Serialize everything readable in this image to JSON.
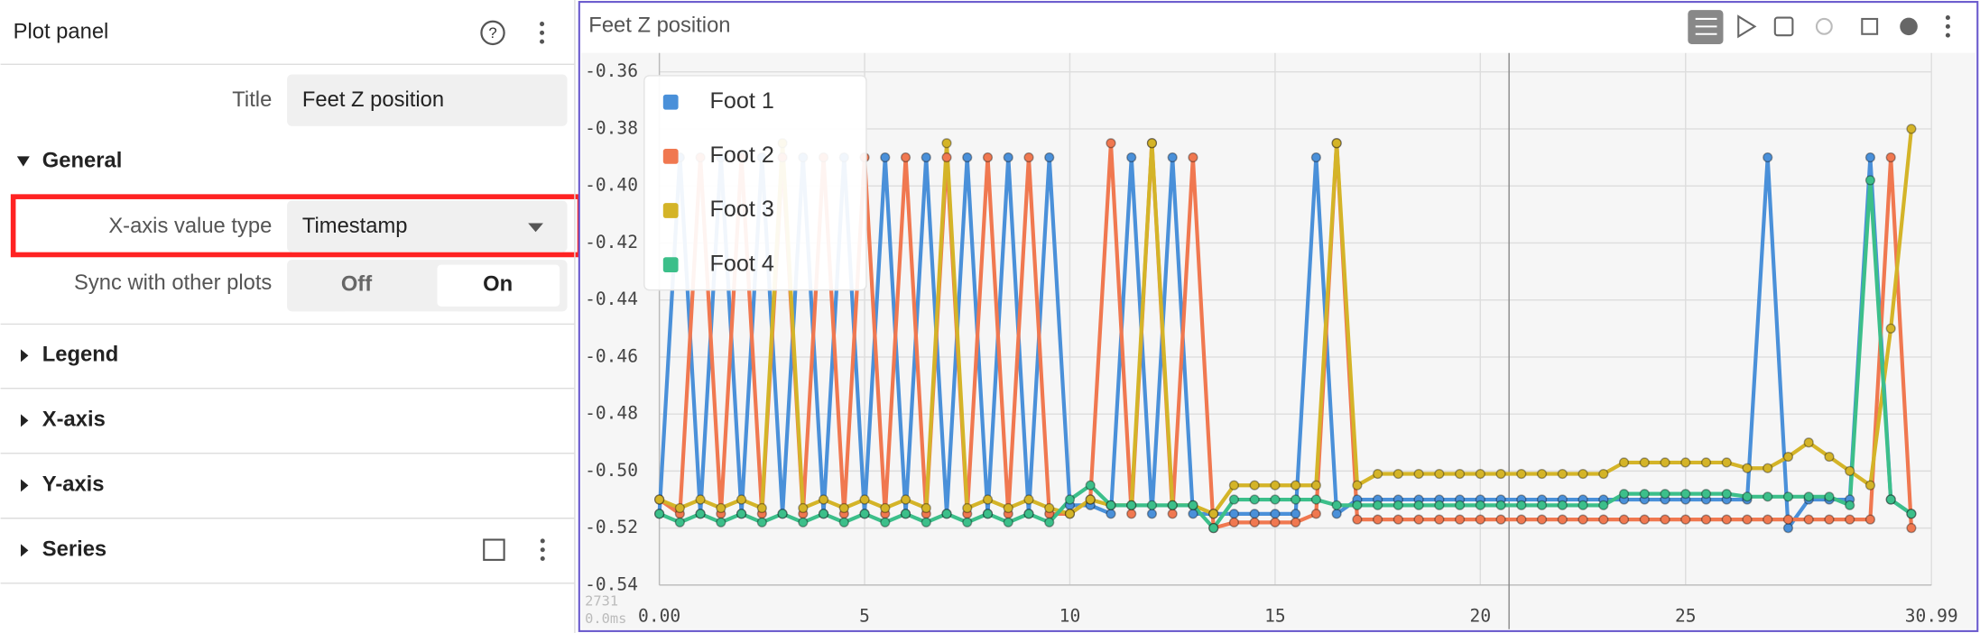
{
  "panel": {
    "header": "Plot panel",
    "title_label": "Title",
    "title_value": "Feet Z position",
    "general": "General",
    "x_axis_type_label": "X-axis value type",
    "x_axis_type_value": "Timestamp",
    "sync_label": "Sync with other plots",
    "sync_off": "Off",
    "sync_on": "On",
    "sections": [
      "Legend",
      "X-axis",
      "Y-axis",
      "Series"
    ]
  },
  "chart_data": {
    "type": "line",
    "title": "Feet Z position",
    "xlim": [
      0,
      30.99
    ],
    "xticks": [
      {
        "value": 0,
        "label": "0.00"
      },
      5,
      10,
      15,
      20,
      25,
      {
        "value": 30.99,
        "label": "30.99"
      }
    ],
    "ylim": [
      -0.54,
      -0.36
    ],
    "yticks": [
      -0.36,
      -0.38,
      {
        "value": -0.4,
        "label": "-0.40"
      },
      -0.42,
      -0.44,
      -0.46,
      -0.48,
      {
        "value": -0.5,
        "label": "-0.50"
      },
      -0.52,
      -0.54
    ],
    "grid": true,
    "legend": "top-left",
    "cursor_x": 20.7,
    "corner_text": [
      "2731",
      "0.0ms"
    ],
    "x": [
      0,
      0.5,
      1,
      1.5,
      2,
      2.5,
      3,
      3.5,
      4,
      4.5,
      5,
      5.5,
      6,
      6.5,
      7,
      7.5,
      8,
      8.5,
      9,
      9.5,
      10,
      10.5,
      11,
      11.5,
      12,
      12.5,
      13,
      13.5,
      14,
      14.5,
      15,
      15.5,
      16,
      16.5,
      17,
      17.5,
      18,
      18.5,
      19,
      19.5,
      20,
      20.5,
      21,
      21.5,
      22,
      22.5,
      23,
      23.5,
      24,
      24.5,
      25,
      25.5,
      26,
      26.5,
      27,
      27.5,
      28,
      28.5,
      29,
      29.5,
      30,
      30.5
    ],
    "series": [
      {
        "name": "Foot 1",
        "color": "#4a90d9",
        "values": [
          -0.515,
          -0.39,
          -0.515,
          -0.39,
          -0.515,
          -0.39,
          -0.515,
          -0.39,
          -0.515,
          -0.39,
          -0.515,
          -0.39,
          -0.515,
          -0.39,
          -0.515,
          -0.39,
          -0.515,
          -0.39,
          -0.515,
          -0.39,
          -0.512,
          -0.512,
          -0.515,
          -0.39,
          -0.515,
          -0.39,
          -0.515,
          -0.515,
          -0.515,
          -0.515,
          -0.515,
          -0.515,
          -0.39,
          -0.515,
          -0.51,
          -0.51,
          -0.51,
          -0.51,
          -0.51,
          -0.51,
          -0.51,
          -0.51,
          -0.51,
          -0.51,
          -0.51,
          -0.51,
          -0.51,
          -0.51,
          -0.51,
          -0.51,
          -0.51,
          -0.51,
          -0.51,
          -0.51,
          -0.39,
          -0.52,
          -0.51,
          -0.51,
          -0.51,
          -0.39,
          -0.51,
          -0.515
        ]
      },
      {
        "name": "Foot 2",
        "color": "#f07850",
        "values": [
          -0.51,
          -0.515,
          -0.39,
          -0.515,
          -0.39,
          -0.515,
          -0.39,
          -0.515,
          -0.39,
          -0.515,
          -0.39,
          -0.515,
          -0.39,
          -0.515,
          -0.39,
          -0.515,
          -0.39,
          -0.515,
          -0.39,
          -0.515,
          -0.515,
          -0.51,
          -0.385,
          -0.515,
          -0.385,
          -0.515,
          -0.39,
          -0.52,
          -0.518,
          -0.518,
          -0.518,
          -0.518,
          -0.515,
          -0.385,
          -0.517,
          -0.517,
          -0.517,
          -0.517,
          -0.517,
          -0.517,
          -0.517,
          -0.517,
          -0.517,
          -0.517,
          -0.517,
          -0.517,
          -0.517,
          -0.517,
          -0.517,
          -0.517,
          -0.517,
          -0.517,
          -0.517,
          -0.517,
          -0.517,
          -0.517,
          -0.517,
          -0.517,
          -0.517,
          -0.517,
          -0.39,
          -0.52
        ]
      },
      {
        "name": "Foot 3",
        "color": "#d4b428",
        "values": [
          -0.51,
          -0.513,
          -0.51,
          -0.513,
          -0.51,
          -0.513,
          -0.385,
          -0.513,
          -0.51,
          -0.513,
          -0.51,
          -0.513,
          -0.51,
          -0.513,
          -0.385,
          -0.513,
          -0.51,
          -0.513,
          -0.51,
          -0.513,
          -0.515,
          -0.51,
          -0.512,
          -0.512,
          -0.385,
          -0.512,
          -0.512,
          -0.515,
          -0.505,
          -0.505,
          -0.505,
          -0.505,
          -0.505,
          -0.385,
          -0.505,
          -0.501,
          -0.501,
          -0.501,
          -0.501,
          -0.501,
          -0.501,
          -0.501,
          -0.501,
          -0.501,
          -0.501,
          -0.501,
          -0.501,
          -0.497,
          -0.497,
          -0.497,
          -0.497,
          -0.497,
          -0.497,
          -0.499,
          -0.499,
          -0.495,
          -0.49,
          -0.495,
          -0.5,
          -0.505,
          -0.45,
          -0.38
        ]
      },
      {
        "name": "Foot 4",
        "color": "#3cbf8a",
        "values": [
          -0.515,
          -0.518,
          -0.515,
          -0.518,
          -0.515,
          -0.518,
          -0.515,
          -0.518,
          -0.515,
          -0.518,
          -0.515,
          -0.518,
          -0.515,
          -0.518,
          -0.515,
          -0.518,
          -0.515,
          -0.518,
          -0.515,
          -0.518,
          -0.51,
          -0.505,
          -0.512,
          -0.512,
          -0.512,
          -0.512,
          -0.512,
          -0.52,
          -0.51,
          -0.51,
          -0.51,
          -0.51,
          -0.51,
          -0.512,
          -0.512,
          -0.512,
          -0.512,
          -0.512,
          -0.512,
          -0.512,
          -0.512,
          -0.512,
          -0.512,
          -0.512,
          -0.512,
          -0.512,
          -0.512,
          -0.508,
          -0.508,
          -0.508,
          -0.508,
          -0.508,
          -0.508,
          -0.509,
          -0.509,
          -0.509,
          -0.509,
          -0.509,
          -0.512,
          -0.398,
          -0.51,
          -0.515
        ]
      }
    ]
  }
}
